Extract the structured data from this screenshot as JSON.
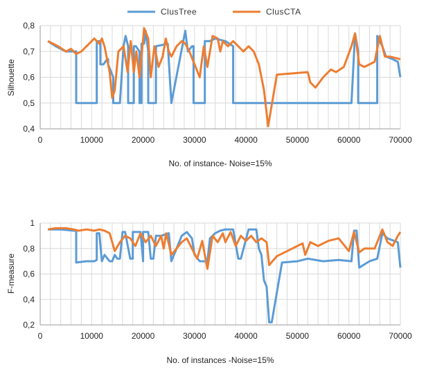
{
  "legend": {
    "items": [
      {
        "label": "ClusTree",
        "color": "#5B9BD5"
      },
      {
        "label": "ClusCTA",
        "color": "#ED7D31"
      }
    ]
  },
  "chart_data": [
    {
      "type": "line",
      "ylabel": "Silhouette",
      "xlabel": "No. of instance- Noise=15%",
      "xlim": [
        0,
        70000
      ],
      "ylim": [
        0.4,
        0.8
      ],
      "xticks": [
        "0",
        "10000",
        "20000",
        "30000",
        "40000",
        "50000",
        "60000",
        "70000"
      ],
      "yticks": [
        "0,4",
        "0,5",
        "0,6",
        "0,7",
        "0,8"
      ],
      "grid": true,
      "legend": "top-center",
      "series": [
        {
          "name": "ClusTree",
          "color": "#5B9BD5",
          "x": [
            1500,
            3000,
            5000,
            6500,
            7000,
            7000,
            11000,
            11000,
            11700,
            11700,
            12300,
            13000,
            13200,
            13200,
            14200,
            14200,
            15500,
            16200,
            16600,
            17100,
            17100,
            18200,
            18200,
            18600,
            19300,
            19300,
            19700,
            19700,
            20200,
            20500,
            21000,
            21000,
            22500,
            22500,
            24800,
            25500,
            25500,
            28200,
            28700,
            29500,
            29800,
            29800,
            32000,
            32000,
            33000,
            34000,
            36000,
            37500,
            37500,
            38500,
            40500,
            41500,
            42000,
            42000,
            47000,
            50000,
            54000,
            57000,
            60500,
            61200,
            61800,
            61800,
            65500,
            65500,
            66500,
            67200,
            68500,
            69500,
            70000
          ],
          "y": [
            0.74,
            0.72,
            0.7,
            0.7,
            0.7,
            0.5,
            0.5,
            0.74,
            0.74,
            0.65,
            0.65,
            0.67,
            0.67,
            0.65,
            0.6,
            0.5,
            0.5,
            0.72,
            0.76,
            0.72,
            0.5,
            0.5,
            0.72,
            0.72,
            0.7,
            0.5,
            0.5,
            0.73,
            0.73,
            0.78,
            0.7,
            0.5,
            0.5,
            0.72,
            0.73,
            0.5,
            0.5,
            0.78,
            0.7,
            0.72,
            0.72,
            0.5,
            0.5,
            0.74,
            0.74,
            0.75,
            0.74,
            0.72,
            0.5,
            0.5,
            0.5,
            0.5,
            0.5,
            0.5,
            0.5,
            0.5,
            0.5,
            0.5,
            0.5,
            0.77,
            0.7,
            0.5,
            0.5,
            0.76,
            0.72,
            0.68,
            0.67,
            0.66,
            0.6
          ]
        },
        {
          "name": "ClusCTA",
          "color": "#ED7D31",
          "x": [
            1500,
            2500,
            3500,
            5000,
            6000,
            7000,
            8000,
            9000,
            10000,
            10500,
            11500,
            12000,
            12500,
            13500,
            14000,
            14500,
            15200,
            16200,
            17000,
            17600,
            18200,
            18700,
            19300,
            20200,
            21000,
            21500,
            22200,
            23000,
            23800,
            24400,
            25000,
            25500,
            26500,
            27500,
            28200,
            29000,
            30000,
            31000,
            31800,
            32500,
            33500,
            34500,
            35000,
            35500,
            36500,
            37500,
            38500,
            39500,
            40500,
            41500,
            42500,
            43500,
            44300,
            46000,
            52000,
            52500,
            53500,
            55000,
            56500,
            57500,
            59000,
            60500,
            61200,
            62000,
            63000,
            65000,
            66000,
            67000,
            68000,
            70000
          ],
          "y": [
            0.74,
            0.73,
            0.72,
            0.7,
            0.71,
            0.69,
            0.7,
            0.72,
            0.74,
            0.75,
            0.73,
            0.75,
            0.72,
            0.62,
            0.52,
            0.55,
            0.7,
            0.72,
            0.62,
            0.74,
            0.62,
            0.7,
            0.6,
            0.79,
            0.75,
            0.6,
            0.72,
            0.64,
            0.68,
            0.75,
            0.7,
            0.68,
            0.72,
            0.74,
            0.73,
            0.7,
            0.65,
            0.6,
            0.72,
            0.64,
            0.76,
            0.75,
            0.7,
            0.74,
            0.72,
            0.74,
            0.72,
            0.7,
            0.72,
            0.7,
            0.65,
            0.55,
            0.41,
            0.61,
            0.62,
            0.58,
            0.56,
            0.6,
            0.63,
            0.62,
            0.64,
            0.72,
            0.77,
            0.65,
            0.64,
            0.66,
            0.76,
            0.68,
            0.68,
            0.67
          ]
        }
      ]
    },
    {
      "type": "line",
      "ylabel": "F-measure",
      "xlabel": "No. of instances -Noise=15%",
      "xlim": [
        0,
        70000
      ],
      "ylim": [
        0.2,
        1.0
      ],
      "xticks": [
        "0",
        "10000",
        "20000",
        "30000",
        "40000",
        "50000",
        "60000",
        "70000"
      ],
      "yticks": [
        "0,2",
        "0,4",
        "0,6",
        "0,8",
        "1"
      ],
      "grid": true,
      "series": [
        {
          "name": "ClusTree",
          "color": "#5B9BD5",
          "x": [
            1500,
            4000,
            6500,
            7000,
            7000,
            9000,
            10500,
            11000,
            11000,
            11500,
            12000,
            12500,
            13500,
            14000,
            14500,
            15000,
            15500,
            16000,
            16500,
            17500,
            18000,
            18000,
            19500,
            20000,
            20000,
            21000,
            21500,
            22000,
            22500,
            23500,
            25000,
            25500,
            26500,
            27500,
            28500,
            29500,
            30000,
            31000,
            32500,
            33000,
            34000,
            35000,
            36000,
            37500,
            38500,
            39000,
            40500,
            42000,
            42500,
            43000,
            43500,
            44000,
            44500,
            45000,
            47000,
            50000,
            52000,
            55000,
            58000,
            60500,
            61000,
            61500,
            62000,
            64000,
            65500,
            66500,
            67500,
            69500,
            70000
          ],
          "y": [
            0.95,
            0.95,
            0.94,
            0.94,
            0.69,
            0.7,
            0.7,
            0.71,
            0.92,
            0.92,
            0.7,
            0.75,
            0.7,
            0.7,
            0.75,
            0.72,
            0.72,
            0.93,
            0.93,
            0.72,
            0.72,
            0.93,
            0.93,
            0.7,
            0.93,
            0.93,
            0.72,
            0.72,
            0.9,
            0.9,
            0.92,
            0.7,
            0.8,
            0.9,
            0.93,
            0.88,
            0.75,
            0.7,
            0.7,
            0.88,
            0.92,
            0.94,
            0.95,
            0.95,
            0.72,
            0.72,
            0.95,
            0.95,
            0.8,
            0.75,
            0.55,
            0.5,
            0.22,
            0.22,
            0.69,
            0.7,
            0.72,
            0.7,
            0.71,
            0.7,
            0.94,
            0.94,
            0.65,
            0.7,
            0.72,
            0.92,
            0.88,
            0.85,
            0.65
          ]
        },
        {
          "name": "ClusCTA",
          "color": "#ED7D31",
          "x": [
            1500,
            3000,
            5000,
            6500,
            7500,
            9000,
            10500,
            11500,
            12500,
            13500,
            14500,
            15500,
            16500,
            17500,
            18500,
            19500,
            20500,
            21500,
            22500,
            23500,
            24000,
            24500,
            25500,
            26500,
            27500,
            28500,
            29500,
            30500,
            31500,
            32500,
            33500,
            34500,
            35500,
            36000,
            37000,
            38000,
            39000,
            40000,
            41000,
            42000,
            43000,
            44000,
            44500,
            46000,
            51000,
            51500,
            52500,
            54000,
            56000,
            58000,
            60000,
            61000,
            62000,
            63000,
            65000,
            66500,
            67500,
            68500,
            69500,
            70000
          ],
          "y": [
            0.95,
            0.96,
            0.96,
            0.95,
            0.94,
            0.95,
            0.94,
            0.95,
            0.94,
            0.92,
            0.78,
            0.85,
            0.9,
            0.88,
            0.82,
            0.92,
            0.85,
            0.9,
            0.82,
            0.9,
            0.8,
            0.92,
            0.75,
            0.8,
            0.85,
            0.88,
            0.8,
            0.72,
            0.86,
            0.64,
            0.9,
            0.85,
            0.92,
            0.85,
            0.93,
            0.82,
            0.9,
            0.86,
            0.9,
            0.85,
            0.88,
            0.85,
            0.67,
            0.74,
            0.84,
            0.75,
            0.85,
            0.82,
            0.86,
            0.88,
            0.78,
            0.93,
            0.77,
            0.8,
            0.8,
            0.95,
            0.85,
            0.82,
            0.9,
            0.93
          ]
        }
      ]
    }
  ]
}
